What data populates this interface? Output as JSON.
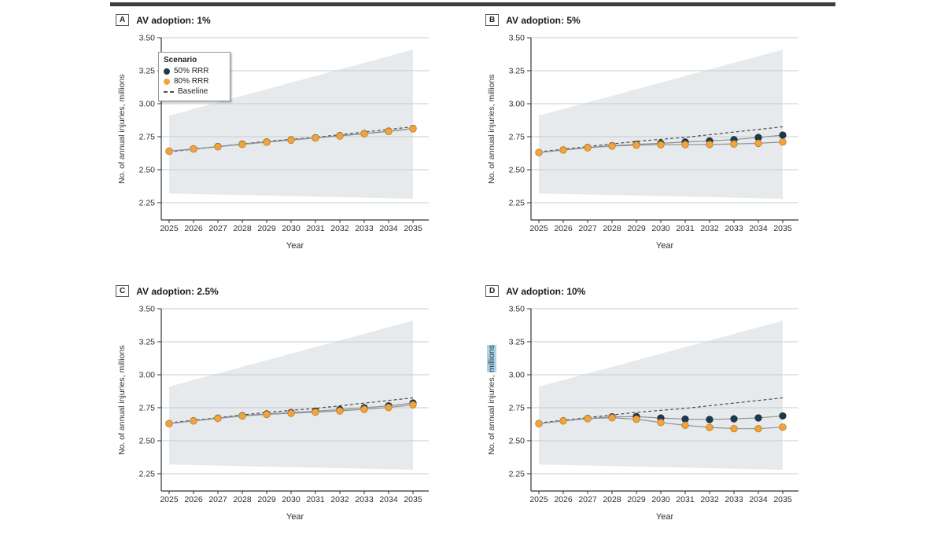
{
  "figure": {
    "rule_color": "#3d3d3d",
    "background": "#ffffff"
  },
  "legend": {
    "title": "Scenario",
    "items": [
      {
        "label": "50% RRR",
        "swatch": "dot",
        "color": "#1d3a4d"
      },
      {
        "label": "80% RRR",
        "swatch": "dot",
        "color": "#f1a33d"
      },
      {
        "label": "Baseline",
        "swatch": "dash",
        "color": "#4a4a4a"
      }
    ]
  },
  "style": {
    "band_color": "#e7eaec",
    "gridline_color": "#c9ccce",
    "axis_color": "#333333",
    "series_line_color": "#8e9398",
    "navy": "#1d3a4d",
    "orange_fill": "#f1a33d",
    "orange_stroke": "#bf7e22",
    "baseline_color": "#4a4a4a",
    "highlight_color": "#a9d4ea"
  },
  "chart_data": [
    {
      "type": "line",
      "panel_label": "A",
      "title": "AV adoption: 1%",
      "xlabel": "Year",
      "ylabel_prefix": "No. of annual injuries, ",
      "ylabel_suffix": "millions",
      "ylabel_suffix_highlighted": false,
      "x": [
        2025,
        2026,
        2027,
        2028,
        2029,
        2030,
        2031,
        2032,
        2033,
        2034,
        2035
      ],
      "yticks": [
        2.25,
        2.5,
        2.75,
        3.0,
        3.25,
        3.5
      ],
      "ylim": [
        2.25,
        3.5
      ],
      "band": {
        "lower": [
          2.32,
          2.28
        ],
        "upper": [
          2.91,
          3.41
        ]
      },
      "series": [
        {
          "name": "Baseline",
          "style": "dashed",
          "values": [
            2.635,
            2.655,
            2.675,
            2.695,
            2.715,
            2.73,
            2.745,
            2.765,
            2.785,
            2.805,
            2.825
          ]
        },
        {
          "name": "50% RRR",
          "style": "dot",
          "values": [
            2.64,
            2.658,
            2.676,
            2.694,
            2.71,
            2.726,
            2.742,
            2.758,
            2.774,
            2.792,
            2.812
          ]
        },
        {
          "name": "80% RRR",
          "style": "dot",
          "values": [
            2.64,
            2.657,
            2.674,
            2.692,
            2.708,
            2.724,
            2.74,
            2.756,
            2.772,
            2.79,
            2.81
          ]
        }
      ]
    },
    {
      "type": "line",
      "panel_label": "B",
      "title": "AV adoption: 5%",
      "xlabel": "Year",
      "ylabel_prefix": "No. of annual injuries, ",
      "ylabel_suffix": "millions",
      "ylabel_suffix_highlighted": false,
      "x": [
        2025,
        2026,
        2027,
        2028,
        2029,
        2030,
        2031,
        2032,
        2033,
        2034,
        2035
      ],
      "yticks": [
        2.25,
        2.5,
        2.75,
        3.0,
        3.25,
        3.5
      ],
      "ylim": [
        2.25,
        3.5
      ],
      "band": {
        "lower": [
          2.32,
          2.28
        ],
        "upper": [
          2.91,
          3.41
        ]
      },
      "series": [
        {
          "name": "Baseline",
          "style": "dashed",
          "values": [
            2.635,
            2.655,
            2.675,
            2.695,
            2.715,
            2.73,
            2.745,
            2.765,
            2.785,
            2.805,
            2.825
          ]
        },
        {
          "name": "50% RRR",
          "style": "dot",
          "values": [
            2.63,
            2.65,
            2.668,
            2.682,
            2.692,
            2.7,
            2.71,
            2.718,
            2.728,
            2.744,
            2.762
          ]
        },
        {
          "name": "80% RRR",
          "style": "dot",
          "values": [
            2.63,
            2.649,
            2.666,
            2.679,
            2.686,
            2.689,
            2.69,
            2.691,
            2.695,
            2.7,
            2.71
          ]
        }
      ]
    },
    {
      "type": "line",
      "panel_label": "C",
      "title": "AV adoption: 2.5%",
      "xlabel": "Year",
      "ylabel_prefix": "No. of annual injuries, ",
      "ylabel_suffix": "millions",
      "ylabel_suffix_highlighted": false,
      "x": [
        2025,
        2026,
        2027,
        2028,
        2029,
        2030,
        2031,
        2032,
        2033,
        2034,
        2035
      ],
      "yticks": [
        2.25,
        2.5,
        2.75,
        3.0,
        3.25,
        3.5
      ],
      "ylim": [
        2.25,
        3.5
      ],
      "band": {
        "lower": [
          2.32,
          2.28
        ],
        "upper": [
          2.91,
          3.41
        ]
      },
      "series": [
        {
          "name": "Baseline",
          "style": "dashed",
          "values": [
            2.635,
            2.655,
            2.675,
            2.695,
            2.715,
            2.73,
            2.745,
            2.765,
            2.785,
            2.805,
            2.825
          ]
        },
        {
          "name": "50% RRR",
          "style": "dot",
          "values": [
            2.63,
            2.651,
            2.671,
            2.69,
            2.703,
            2.714,
            2.724,
            2.736,
            2.75,
            2.764,
            2.786
          ]
        },
        {
          "name": "80% RRR",
          "style": "dot",
          "values": [
            2.63,
            2.65,
            2.669,
            2.687,
            2.699,
            2.708,
            2.716,
            2.726,
            2.738,
            2.752,
            2.772
          ]
        }
      ]
    },
    {
      "type": "line",
      "panel_label": "D",
      "title": "AV adoption: 10%",
      "xlabel": "Year",
      "ylabel_prefix": "No. of annual injuries, ",
      "ylabel_suffix": "millions",
      "ylabel_suffix_highlighted": true,
      "x": [
        2025,
        2026,
        2027,
        2028,
        2029,
        2030,
        2031,
        2032,
        2033,
        2034,
        2035
      ],
      "yticks": [
        2.25,
        2.5,
        2.75,
        3.0,
        3.25,
        3.5
      ],
      "ylim": [
        2.25,
        3.5
      ],
      "band": {
        "lower": [
          2.32,
          2.28
        ],
        "upper": [
          2.91,
          3.41
        ]
      },
      "series": [
        {
          "name": "Baseline",
          "style": "dashed",
          "values": [
            2.635,
            2.655,
            2.675,
            2.695,
            2.715,
            2.73,
            2.745,
            2.765,
            2.785,
            2.805,
            2.825
          ]
        },
        {
          "name": "50% RRR",
          "style": "dot",
          "values": [
            2.63,
            2.651,
            2.669,
            2.681,
            2.683,
            2.672,
            2.664,
            2.661,
            2.666,
            2.673,
            2.688
          ]
        },
        {
          "name": "80% RRR",
          "style": "dot",
          "values": [
            2.63,
            2.65,
            2.667,
            2.674,
            2.663,
            2.638,
            2.617,
            2.601,
            2.592,
            2.591,
            2.603
          ]
        }
      ]
    }
  ]
}
